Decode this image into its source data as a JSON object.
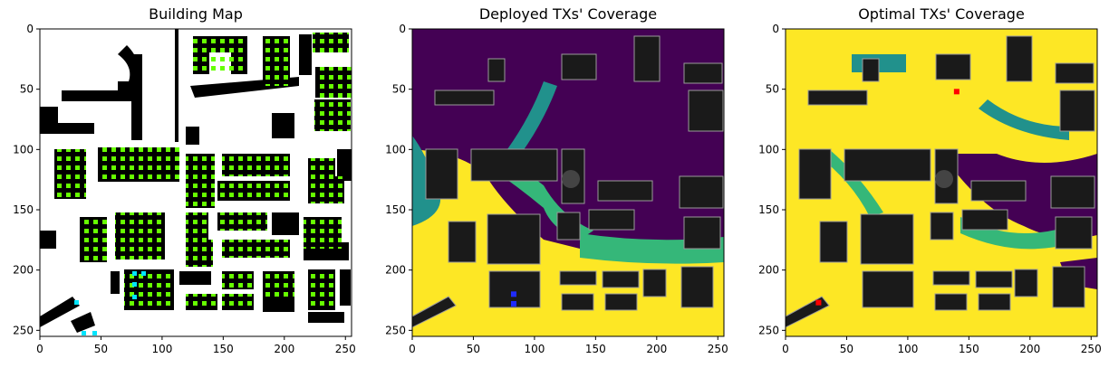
{
  "colors": {
    "background": "#ffffff",
    "building": "#000000",
    "reflector_green": "#66ff00",
    "reflector_cyan": "#00e5ff",
    "coverage_low": "#440154",
    "coverage_mid": "#21918c",
    "coverage_mid2": "#35b779",
    "coverage_high": "#fde725",
    "building_overlay": "#1a1a1a",
    "deployed_tx": "#1f2bff",
    "optimal_tx": "#ff0000"
  },
  "chart_data": [
    {
      "type": "heatmap",
      "title": "Building Map",
      "xlim": [
        0,
        255
      ],
      "ylim": [
        255,
        0
      ],
      "x_ticks": [
        0,
        50,
        100,
        150,
        200,
        250
      ],
      "y_ticks": [
        0,
        50,
        100,
        150,
        200,
        250
      ],
      "x_tick_labels": [
        "0",
        "50",
        "100",
        "150",
        "200",
        "250"
      ],
      "y_tick_labels": [
        "0",
        "50",
        "100",
        "150",
        "200",
        "250"
      ]
    },
    {
      "type": "heatmap",
      "title": "Deployed TXs' Coverage",
      "xlim": [
        0,
        255
      ],
      "ylim": [
        255,
        0
      ],
      "x_ticks": [
        0,
        50,
        100,
        150,
        200,
        250
      ],
      "y_ticks": [
        0,
        50,
        100,
        150,
        200,
        250
      ],
      "x_tick_labels": [
        "0",
        "50",
        "100",
        "150",
        "200",
        "250"
      ],
      "y_tick_labels": [
        "0",
        "50",
        "100",
        "150",
        "200",
        "250"
      ],
      "transmitters": [
        {
          "x": 83,
          "y": 220
        },
        {
          "x": 83,
          "y": 228
        }
      ]
    },
    {
      "type": "heatmap",
      "title": "Optimal TXs' Coverage",
      "xlim": [
        0,
        255
      ],
      "ylim": [
        255,
        0
      ],
      "x_ticks": [
        0,
        50,
        100,
        150,
        200,
        250
      ],
      "y_ticks": [
        0,
        50,
        100,
        150,
        200,
        250
      ],
      "x_tick_labels": [
        "0",
        "50",
        "100",
        "150",
        "200",
        "250"
      ],
      "y_tick_labels": [
        "0",
        "50",
        "100",
        "150",
        "200",
        "250"
      ],
      "transmitters": [
        {
          "x": 140,
          "y": 52
        },
        {
          "x": 27,
          "y": 227
        }
      ]
    }
  ]
}
